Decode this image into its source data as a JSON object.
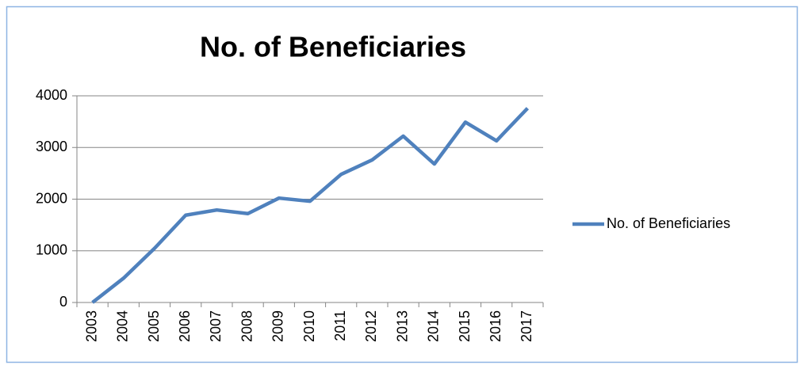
{
  "chart_data": {
    "type": "line",
    "title": "No. of Beneficiaries",
    "categories": [
      "2003",
      "2004",
      "2005",
      "2006",
      "2007",
      "2008",
      "2009",
      "2010",
      "2011",
      "2012",
      "2013",
      "2014",
      "2015",
      "2016",
      "2017"
    ],
    "series": [
      {
        "name": "No. of Beneficiaries",
        "color": "#4f81bd",
        "values": [
          0,
          470,
          1050,
          1690,
          1790,
          1720,
          2020,
          1960,
          2480,
          2760,
          3220,
          2680,
          3490,
          3130,
          3760
        ]
      }
    ],
    "ylim": [
      0,
      4000
    ],
    "yticks": [
      0,
      1000,
      2000,
      3000,
      4000
    ],
    "grid": true,
    "legend": "right"
  }
}
